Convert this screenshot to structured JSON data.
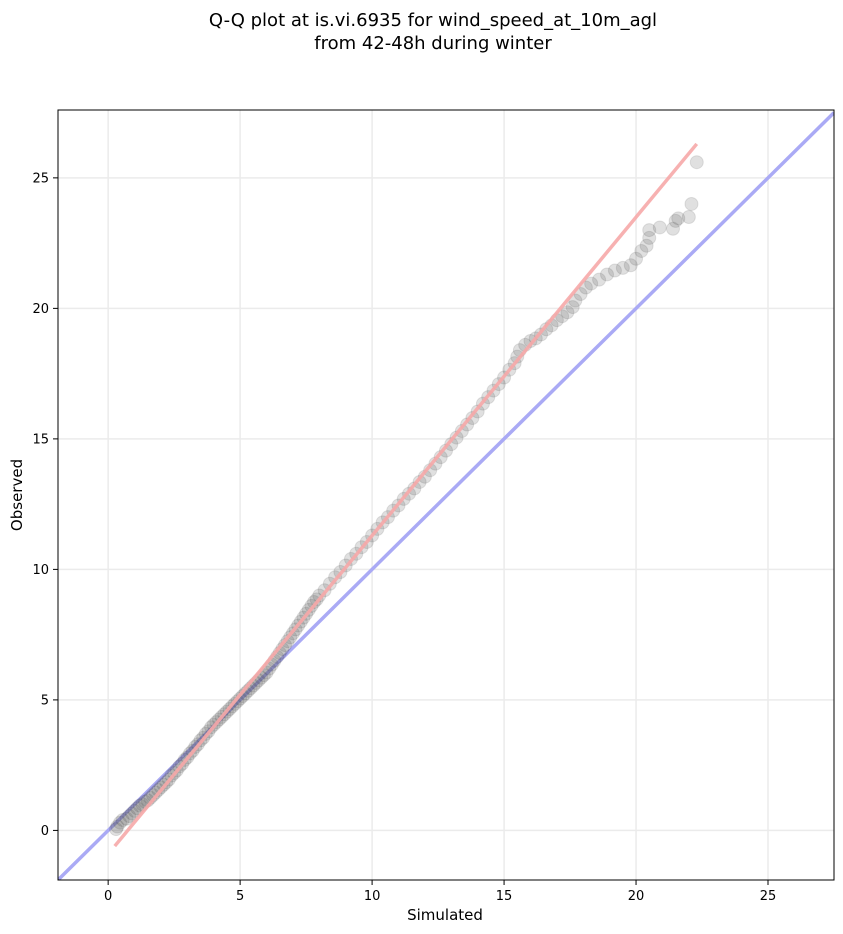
{
  "chart_data": {
    "type": "scatter",
    "title_lines": [
      "Q-Q plot at is.vi.6935 for wind_speed_at_10m_agl",
      "from 42-48h during winter"
    ],
    "xlabel": "Simulated",
    "ylabel": "Observed",
    "xlim": [
      -1.9,
      27.5
    ],
    "ylim": [
      -1.9,
      27.6
    ],
    "xticks": [
      0,
      5,
      10,
      15,
      20,
      25
    ],
    "yticks": [
      0,
      5,
      10,
      15,
      20,
      25
    ],
    "xtick_labels": [
      "0",
      "5",
      "10",
      "15",
      "20",
      "25"
    ],
    "ytick_labels": [
      "0",
      "5",
      "10",
      "15",
      "20",
      "25"
    ],
    "grid": true,
    "reference_line": {
      "from": [
        -1.9,
        -1.9
      ],
      "to": [
        27.5,
        27.5
      ],
      "color": "#aaaaf5"
    },
    "fit_line": {
      "from": [
        0.25,
        -0.6
      ],
      "to": [
        22.3,
        26.3
      ],
      "color": "#f7a9a9"
    },
    "points": [
      [
        0.3,
        0.05
      ],
      [
        0.35,
        0.15
      ],
      [
        0.45,
        0.3
      ],
      [
        0.55,
        0.4
      ],
      [
        0.7,
        0.45
      ],
      [
        0.8,
        0.55
      ],
      [
        0.9,
        0.65
      ],
      [
        1.0,
        0.75
      ],
      [
        1.1,
        0.85
      ],
      [
        1.2,
        0.95
      ],
      [
        1.3,
        1.0
      ],
      [
        1.4,
        1.1
      ],
      [
        1.5,
        1.15
      ],
      [
        1.6,
        1.25
      ],
      [
        1.7,
        1.35
      ],
      [
        1.8,
        1.45
      ],
      [
        1.9,
        1.55
      ],
      [
        2.0,
        1.65
      ],
      [
        2.1,
        1.75
      ],
      [
        2.2,
        1.85
      ],
      [
        2.3,
        1.95
      ],
      [
        2.4,
        2.1
      ],
      [
        2.5,
        2.2
      ],
      [
        2.6,
        2.3
      ],
      [
        2.7,
        2.45
      ],
      [
        2.8,
        2.55
      ],
      [
        2.9,
        2.7
      ],
      [
        3.0,
        2.8
      ],
      [
        3.1,
        2.95
      ],
      [
        3.2,
        3.05
      ],
      [
        3.3,
        3.2
      ],
      [
        3.4,
        3.3
      ],
      [
        3.5,
        3.45
      ],
      [
        3.6,
        3.55
      ],
      [
        3.7,
        3.7
      ],
      [
        3.8,
        3.8
      ],
      [
        3.9,
        3.95
      ],
      [
        4.0,
        4.05
      ],
      [
        4.1,
        4.15
      ],
      [
        4.2,
        4.25
      ],
      [
        4.3,
        4.35
      ],
      [
        4.4,
        4.45
      ],
      [
        4.5,
        4.55
      ],
      [
        4.6,
        4.65
      ],
      [
        4.7,
        4.75
      ],
      [
        4.8,
        4.85
      ],
      [
        4.9,
        4.95
      ],
      [
        5.0,
        5.05
      ],
      [
        5.1,
        5.15
      ],
      [
        5.2,
        5.25
      ],
      [
        5.3,
        5.35
      ],
      [
        5.4,
        5.45
      ],
      [
        5.5,
        5.55
      ],
      [
        5.6,
        5.65
      ],
      [
        5.7,
        5.75
      ],
      [
        5.8,
        5.85
      ],
      [
        5.9,
        5.95
      ],
      [
        6.0,
        6.05
      ],
      [
        6.1,
        6.2
      ],
      [
        6.2,
        6.35
      ],
      [
        6.3,
        6.5
      ],
      [
        6.4,
        6.65
      ],
      [
        6.5,
        6.8
      ],
      [
        6.6,
        6.95
      ],
      [
        6.7,
        7.1
      ],
      [
        6.8,
        7.25
      ],
      [
        6.9,
        7.4
      ],
      [
        7.0,
        7.55
      ],
      [
        7.1,
        7.7
      ],
      [
        7.2,
        7.85
      ],
      [
        7.3,
        8.0
      ],
      [
        7.4,
        8.15
      ],
      [
        7.5,
        8.3
      ],
      [
        7.6,
        8.45
      ],
      [
        7.7,
        8.6
      ],
      [
        7.8,
        8.75
      ],
      [
        7.9,
        8.85
      ],
      [
        8.0,
        9.0
      ],
      [
        8.2,
        9.2
      ],
      [
        8.4,
        9.45
      ],
      [
        8.6,
        9.7
      ],
      [
        8.8,
        9.9
      ],
      [
        9.0,
        10.15
      ],
      [
        9.2,
        10.4
      ],
      [
        9.4,
        10.6
      ],
      [
        9.6,
        10.85
      ],
      [
        9.8,
        11.05
      ],
      [
        10.0,
        11.3
      ],
      [
        10.2,
        11.55
      ],
      [
        10.4,
        11.8
      ],
      [
        10.6,
        12.0
      ],
      [
        10.8,
        12.25
      ],
      [
        11.0,
        12.45
      ],
      [
        11.2,
        12.7
      ],
      [
        11.4,
        12.9
      ],
      [
        11.6,
        13.1
      ],
      [
        11.8,
        13.35
      ],
      [
        12.0,
        13.55
      ],
      [
        12.2,
        13.8
      ],
      [
        12.4,
        14.05
      ],
      [
        12.6,
        14.3
      ],
      [
        12.8,
        14.55
      ],
      [
        13.0,
        14.8
      ],
      [
        13.2,
        15.05
      ],
      [
        13.4,
        15.3
      ],
      [
        13.6,
        15.55
      ],
      [
        13.8,
        15.8
      ],
      [
        14.0,
        16.05
      ],
      [
        14.2,
        16.35
      ],
      [
        14.4,
        16.6
      ],
      [
        14.6,
        16.85
      ],
      [
        14.8,
        17.1
      ],
      [
        15.0,
        17.35
      ],
      [
        15.2,
        17.65
      ],
      [
        15.4,
        17.9
      ],
      [
        15.5,
        18.15
      ],
      [
        15.6,
        18.4
      ],
      [
        15.8,
        18.6
      ],
      [
        16.0,
        18.75
      ],
      [
        16.2,
        18.85
      ],
      [
        16.4,
        19.0
      ],
      [
        16.6,
        19.2
      ],
      [
        16.8,
        19.35
      ],
      [
        17.0,
        19.55
      ],
      [
        17.2,
        19.7
      ],
      [
        17.4,
        19.85
      ],
      [
        17.6,
        20.05
      ],
      [
        17.7,
        20.3
      ],
      [
        17.9,
        20.55
      ],
      [
        18.1,
        20.8
      ],
      [
        18.3,
        20.95
      ],
      [
        18.6,
        21.1
      ],
      [
        18.9,
        21.3
      ],
      [
        19.2,
        21.45
      ],
      [
        19.5,
        21.55
      ],
      [
        19.8,
        21.65
      ],
      [
        20.0,
        21.9
      ],
      [
        20.2,
        22.2
      ],
      [
        20.4,
        22.4
      ],
      [
        20.5,
        22.7
      ],
      [
        20.5,
        23.0
      ],
      [
        20.9,
        23.1
      ],
      [
        21.4,
        23.05
      ],
      [
        21.5,
        23.35
      ],
      [
        21.6,
        23.45
      ],
      [
        22.0,
        23.5
      ],
      [
        22.1,
        24.0
      ],
      [
        22.3,
        25.6
      ]
    ]
  }
}
